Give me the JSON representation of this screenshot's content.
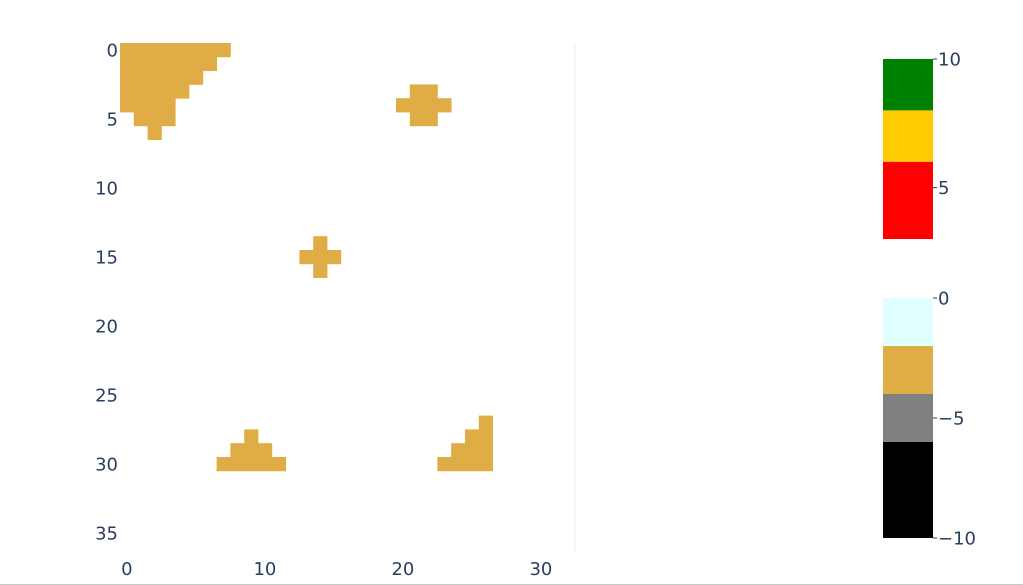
{
  "chart_data": {
    "type": "heatmap",
    "x_ticks": [
      0,
      10,
      20,
      30
    ],
    "y_ticks": [
      0,
      5,
      10,
      15,
      20,
      25,
      30,
      35
    ],
    "xlim": [
      -0.5,
      32.5
    ],
    "ylim": [
      -0.5,
      36.5
    ],
    "y_reversed": true,
    "cell_value": -4,
    "cell_color": "#e0ac45",
    "blocks": [
      {
        "name": "top-left-triangle",
        "cells": [
          [
            0,
            0
          ],
          [
            1,
            0
          ],
          [
            2,
            0
          ],
          [
            3,
            0
          ],
          [
            4,
            0
          ],
          [
            5,
            0
          ],
          [
            6,
            0
          ],
          [
            7,
            0
          ],
          [
            0,
            1
          ],
          [
            1,
            1
          ],
          [
            2,
            1
          ],
          [
            3,
            1
          ],
          [
            4,
            1
          ],
          [
            5,
            1
          ],
          [
            6,
            1
          ],
          [
            0,
            2
          ],
          [
            1,
            2
          ],
          [
            2,
            2
          ],
          [
            3,
            2
          ],
          [
            4,
            2
          ],
          [
            5,
            2
          ],
          [
            0,
            3
          ],
          [
            1,
            3
          ],
          [
            2,
            3
          ],
          [
            3,
            3
          ],
          [
            4,
            3
          ],
          [
            0,
            4
          ],
          [
            1,
            4
          ],
          [
            2,
            4
          ],
          [
            3,
            4
          ],
          [
            1,
            5
          ],
          [
            2,
            5
          ],
          [
            3,
            5
          ],
          [
            2,
            6
          ]
        ]
      },
      {
        "name": "top-right-cross",
        "cells": [
          [
            21,
            3
          ],
          [
            22,
            3
          ],
          [
            20,
            4
          ],
          [
            21,
            4
          ],
          [
            22,
            4
          ],
          [
            23,
            4
          ],
          [
            21,
            5
          ],
          [
            22,
            5
          ]
        ]
      },
      {
        "name": "middle-cross",
        "cells": [
          [
            14,
            14
          ],
          [
            13,
            15
          ],
          [
            14,
            15
          ],
          [
            15,
            15
          ],
          [
            14,
            16
          ]
        ]
      },
      {
        "name": "bottom-left-pyramid",
        "cells": [
          [
            9,
            28
          ],
          [
            8,
            29
          ],
          [
            9,
            29
          ],
          [
            10,
            29
          ],
          [
            7,
            30
          ],
          [
            8,
            30
          ],
          [
            9,
            30
          ],
          [
            10,
            30
          ],
          [
            11,
            30
          ]
        ]
      },
      {
        "name": "bottom-right-stair",
        "cells": [
          [
            26,
            27
          ],
          [
            25,
            28
          ],
          [
            26,
            28
          ],
          [
            24,
            29
          ],
          [
            25,
            29
          ],
          [
            26,
            29
          ],
          [
            23,
            30
          ],
          [
            24,
            30
          ],
          [
            25,
            30
          ],
          [
            26,
            30
          ]
        ]
      }
    ],
    "colorbars": [
      {
        "name": "upper",
        "range": [
          3,
          10
        ],
        "ticks": [
          {
            "value": 10,
            "label": "10"
          },
          {
            "value": 5,
            "label": "5"
          }
        ],
        "bands": [
          {
            "from": 8,
            "to": 10,
            "color": "#008000"
          },
          {
            "from": 6,
            "to": 8,
            "color": "#ffcc00"
          },
          {
            "from": 3,
            "to": 6,
            "color": "#ff0000"
          }
        ]
      },
      {
        "name": "lower",
        "range": [
          -10,
          0
        ],
        "ticks": [
          {
            "value": 0,
            "label": "0"
          },
          {
            "value": -5,
            "label": "−5"
          },
          {
            "value": -10,
            "label": "−10"
          }
        ],
        "bands": [
          {
            "from": -2,
            "to": 0,
            "color": "#e0ffff"
          },
          {
            "from": -4,
            "to": -2,
            "color": "#e0ac45"
          },
          {
            "from": -6,
            "to": -4,
            "color": "#808080"
          },
          {
            "from": -10,
            "to": -6,
            "color": "#000000"
          }
        ]
      }
    ]
  }
}
